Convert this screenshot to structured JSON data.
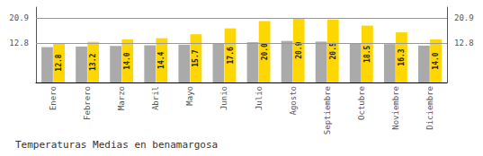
{
  "chart_data": {
    "type": "bar",
    "title": "Temperaturas Medias en benamargosa",
    "categories": [
      "Enero",
      "Febrero",
      "Marzo",
      "Abril",
      "Mayo",
      "Junio",
      "Julio",
      "Agosto",
      "Septiembre",
      "Octubre",
      "Noviembre",
      "Diciembre"
    ],
    "series": [
      {
        "color": "#AAAAAA",
        "values": [
          11.5,
          11.7,
          11.9,
          12.1,
          12.3,
          12.6,
          13.1,
          13.5,
          13.3,
          12.8,
          12.5,
          12.0
        ]
      },
      {
        "color": "#FFD700",
        "values": [
          12.8,
          13.2,
          14.0,
          14.4,
          15.7,
          17.6,
          20.0,
          20.9,
          20.5,
          18.5,
          16.3,
          14.0
        ],
        "value_labels": [
          "12.8",
          "13.2",
          "14.0",
          "14.4",
          "15.7",
          "17.6",
          "20.0",
          "20.9",
          "20.5",
          "18.5",
          "16.3",
          "14.0"
        ],
        "data_labels": true
      }
    ],
    "ylim": [
      0,
      24.5
    ],
    "yticks": [
      12.8,
      20.9
    ],
    "y2lim": [
      0,
      24.5
    ],
    "y2ticks": [
      12.8,
      20.9
    ],
    "grid": true
  }
}
